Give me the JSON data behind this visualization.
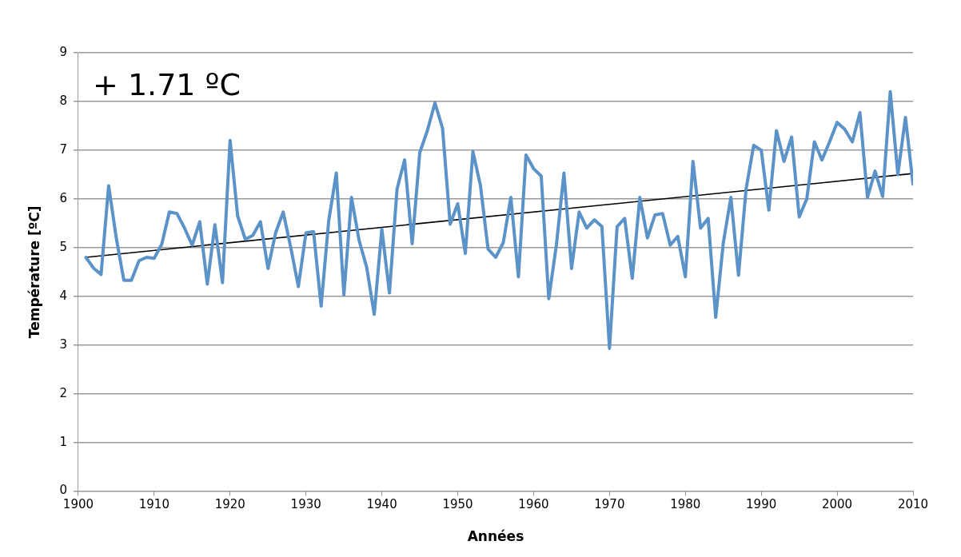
{
  "chart_data": {
    "type": "line",
    "xlabel": "Années",
    "ylabel": "Température [ºC]",
    "annotations": [
      "+ 1.71 ºC"
    ],
    "x": [
      1901,
      1902,
      1903,
      1904,
      1905,
      1906,
      1907,
      1908,
      1909,
      1910,
      1911,
      1912,
      1913,
      1914,
      1915,
      1916,
      1917,
      1918,
      1919,
      1920,
      1921,
      1922,
      1923,
      1924,
      1925,
      1926,
      1927,
      1928,
      1929,
      1930,
      1931,
      1932,
      1933,
      1934,
      1935,
      1936,
      1937,
      1938,
      1939,
      1940,
      1941,
      1942,
      1943,
      1944,
      1945,
      1946,
      1947,
      1948,
      1949,
      1950,
      1951,
      1952,
      1953,
      1954,
      1955,
      1956,
      1957,
      1958,
      1959,
      1960,
      1961,
      1962,
      1963,
      1964,
      1965,
      1966,
      1967,
      1968,
      1969,
      1970,
      1971,
      1972,
      1973,
      1974,
      1975,
      1976,
      1977,
      1978,
      1979,
      1980,
      1981,
      1982,
      1983,
      1984,
      1985,
      1986,
      1987,
      1988,
      1989,
      1990,
      1991,
      1992,
      1993,
      1994,
      1995,
      1996,
      1997,
      1998,
      1999,
      2000,
      2001,
      2002,
      2003,
      2004,
      2005,
      2006,
      2007,
      2008,
      2009,
      2010
    ],
    "series": [
      {
        "color": "#5b93c9",
        "values": [
          4.8,
          4.58,
          4.45,
          6.27,
          5.2,
          4.33,
          4.33,
          4.73,
          4.8,
          4.78,
          5.07,
          5.73,
          5.7,
          5.4,
          5.05,
          5.53,
          4.25,
          5.47,
          4.28,
          7.2,
          5.65,
          5.17,
          5.25,
          5.53,
          4.57,
          5.3,
          5.73,
          5.0,
          4.2,
          5.3,
          5.33,
          3.8,
          5.55,
          6.53,
          4.03,
          6.03,
          5.15,
          4.6,
          3.63,
          5.38,
          4.07,
          6.2,
          6.8,
          5.08,
          6.95,
          7.4,
          7.97,
          7.45,
          5.48,
          5.9,
          4.88,
          6.97,
          6.27,
          4.97,
          4.8,
          5.1,
          6.03,
          4.4,
          6.9,
          6.62,
          6.47,
          3.95,
          5.05,
          6.53,
          4.57,
          5.73,
          5.4,
          5.57,
          5.43,
          2.93,
          5.43,
          5.6,
          4.37,
          6.03,
          5.2,
          5.67,
          5.7,
          5.05,
          5.23,
          4.4,
          6.77,
          5.4,
          5.6,
          3.57,
          5.1,
          6.03,
          4.43,
          6.2,
          7.1,
          7.0,
          5.77,
          7.4,
          6.77,
          7.27,
          5.63,
          6.0,
          7.17,
          6.8,
          7.17,
          7.57,
          7.43,
          7.17,
          7.77,
          6.03,
          6.57,
          6.05,
          8.2,
          6.5,
          7.67,
          6.3
        ]
      },
      {
        "type": "line",
        "color": "#000000",
        "x": [
          1901,
          2010
        ],
        "values": [
          4.8,
          6.52
        ]
      }
    ],
    "xlim": [
      1900,
      2010
    ],
    "xticks": [
      1900,
      1910,
      1920,
      1930,
      1940,
      1950,
      1960,
      1970,
      1980,
      1990,
      2000,
      2010
    ],
    "ylim": [
      0,
      9
    ],
    "yticks": [
      0,
      1,
      2,
      3,
      4,
      5,
      6,
      7,
      8,
      9
    ],
    "grid": "y",
    "legend": false,
    "marker": "none",
    "line_style": "solid"
  }
}
